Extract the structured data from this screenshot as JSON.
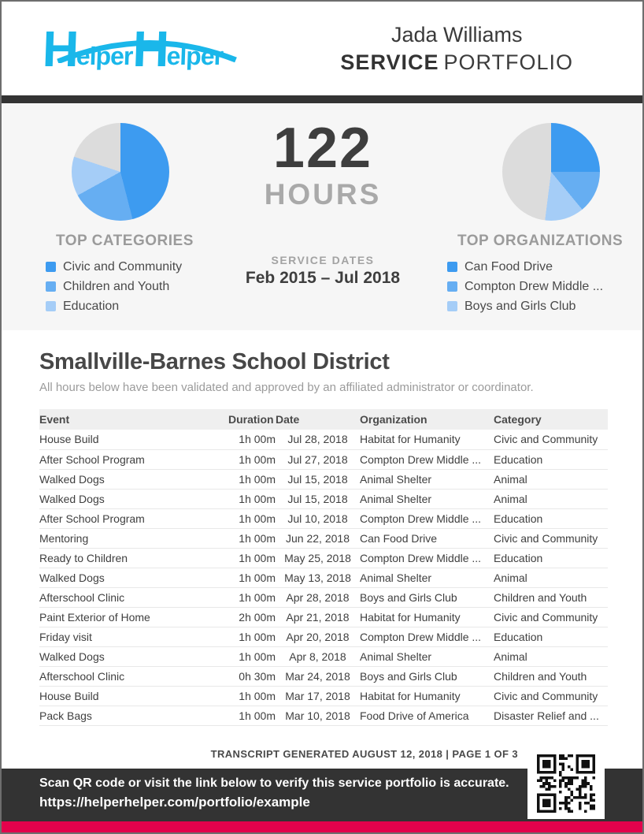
{
  "header": {
    "logo": {
      "h1": "H",
      "rest1": "elper",
      "h2": "H",
      "rest2": "elper"
    },
    "person_name": "Jada Williams",
    "portfolio_bold": "SERVICE",
    "portfolio_light": "PORTFOLIO"
  },
  "summary": {
    "hours_value": "122",
    "hours_label": "HOURS",
    "service_dates_label": "SERVICE DATES",
    "service_dates_value": "Feb 2015 – Jul 2018"
  },
  "chart_data": [
    {
      "type": "pie",
      "title": "TOP CATEGORIES",
      "labels": [
        "Civic and Community",
        "Children and Youth",
        "Education",
        "Other"
      ],
      "values": [
        46,
        21,
        13,
        20
      ],
      "colors": [
        "#3d9bf0",
        "#66aef2",
        "#a5cdf7",
        "#dcdcdc"
      ],
      "legend_labels": [
        "Civic and Community",
        "Children and Youth",
        "Education"
      ],
      "legend_position": "below-left"
    },
    {
      "type": "pie",
      "title": "TOP ORGANIZATIONS",
      "labels": [
        "Can Food Drive",
        "Compton Drew Middle ...",
        "Boys and Girls Club",
        "Other"
      ],
      "values": [
        25,
        14,
        13,
        48
      ],
      "colors": [
        "#3d9bf0",
        "#66aef2",
        "#a5cdf7",
        "#dcdcdc"
      ],
      "legend_labels": [
        "Can Food Drive",
        "Compton Drew Middle ...",
        "Boys and Girls Club"
      ],
      "legend_position": "below-left"
    }
  ],
  "main": {
    "title": "Smallville-Barnes School District",
    "subtitle": "All hours below have been validated and approved by an affiliated administrator or coordinator.",
    "table": {
      "columns": [
        "Event",
        "Duration",
        "Date",
        "Organization",
        "Category"
      ],
      "rows": [
        [
          "House Build",
          "1h 00m",
          "Jul 28, 2018",
          "Habitat for Humanity",
          "Civic and Community"
        ],
        [
          "After School Program",
          "1h 00m",
          "Jul 27, 2018",
          "Compton Drew Middle ...",
          "Education"
        ],
        [
          "Walked Dogs",
          "1h 00m",
          "Jul 15, 2018",
          "Animal Shelter",
          "Animal"
        ],
        [
          "Walked Dogs",
          "1h 00m",
          "Jul 15, 2018",
          "Animal Shelter",
          "Animal"
        ],
        [
          "After School Program",
          "1h 00m",
          "Jul 10, 2018",
          "Compton Drew Middle ...",
          "Education"
        ],
        [
          "Mentoring",
          "1h 00m",
          "Jun 22, 2018",
          "Can Food Drive",
          "Civic and Community"
        ],
        [
          "Ready to Children",
          "1h 00m",
          "May 25, 2018",
          "Compton Drew Middle ...",
          "Education"
        ],
        [
          "Walked Dogs",
          "1h 00m",
          "May 13, 2018",
          "Animal Shelter",
          "Animal"
        ],
        [
          "Afterschool Clinic",
          "1h 00m",
          "Apr 28, 2018",
          "Boys and Girls Club",
          "Children and Youth"
        ],
        [
          "Paint Exterior of Home",
          "2h 00m",
          "Apr 21, 2018",
          "Habitat for Humanity",
          "Civic and Community"
        ],
        [
          "Friday visit",
          "1h 00m",
          "Apr 20, 2018",
          "Compton Drew Middle ...",
          "Education"
        ],
        [
          "Walked Dogs",
          "1h 00m",
          "Apr 8, 2018",
          "Animal Shelter",
          "Animal"
        ],
        [
          "Afterschool Clinic",
          "0h 30m",
          "Mar 24, 2018",
          "Boys and Girls Club",
          "Children and Youth"
        ],
        [
          "House Build",
          "1h 00m",
          "Mar 17, 2018",
          "Habitat for Humanity",
          "Civic and Community"
        ],
        [
          "Pack Bags",
          "1h 00m",
          "Mar 10, 2018",
          "Food Drive of America",
          "Disaster Relief and ..."
        ]
      ]
    }
  },
  "footer": {
    "transcript_line": "TRANSCRIPT GENERATED AUGUST 12, 2018 | PAGE 1 OF 3",
    "verify_text": "Scan QR code or visit the link below to verify this service portfolio is accurate.",
    "verify_url": "https://helperhelper.com/portfolio/example"
  },
  "colors": {
    "logo_cyan": "#1ab7ea",
    "bar_dark": "#333333",
    "panel_gray": "#f6f6f6",
    "accent_pink": "#e3024c",
    "text_dark": "#3e3e3e",
    "text_gray": "#9b9b9b"
  }
}
